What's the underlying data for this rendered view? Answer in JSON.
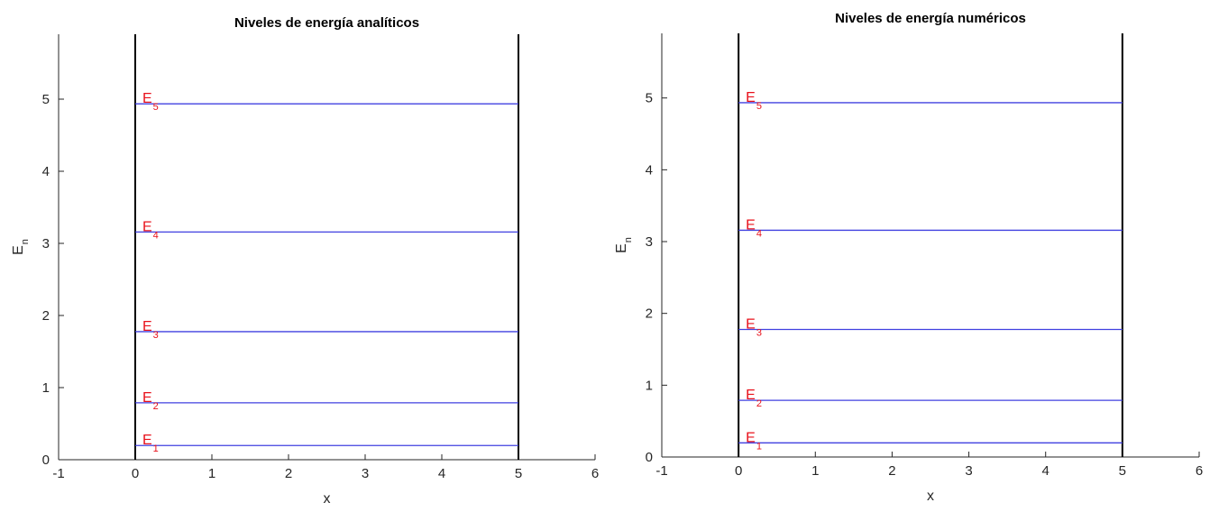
{
  "chart_data": [
    {
      "type": "line",
      "title": "Niveles de energía analíticos",
      "xlabel": "x",
      "ylabel_main": "E",
      "ylabel_sub": "n",
      "xlim": [
        -1,
        6
      ],
      "ylim": [
        0,
        5.9
      ],
      "xticks": [
        -1,
        0,
        1,
        2,
        3,
        4,
        5,
        6
      ],
      "yticks": [
        0,
        1,
        2,
        3,
        4,
        5
      ],
      "well": {
        "x_left": 0,
        "x_right": 5
      },
      "series": [
        {
          "name": "E1",
          "label_main": "E",
          "label_sub": "1",
          "x": [
            0,
            5
          ],
          "values": [
            0.197,
            0.197
          ]
        },
        {
          "name": "E2",
          "label_main": "E",
          "label_sub": "2",
          "x": [
            0,
            5
          ],
          "values": [
            0.789,
            0.789
          ]
        },
        {
          "name": "E3",
          "label_main": "E",
          "label_sub": "3",
          "x": [
            0,
            5
          ],
          "values": [
            1.776,
            1.776
          ]
        },
        {
          "name": "E4",
          "label_main": "E",
          "label_sub": "4",
          "x": [
            0,
            5
          ],
          "values": [
            3.158,
            3.158
          ]
        },
        {
          "name": "E5",
          "label_main": "E",
          "label_sub": "5",
          "x": [
            0,
            5
          ],
          "values": [
            4.935,
            4.935
          ]
        }
      ]
    },
    {
      "type": "line",
      "title": "Niveles de energía numéricos",
      "xlabel": "x",
      "ylabel_main": "E",
      "ylabel_sub": "n",
      "xlim": [
        -1,
        6
      ],
      "ylim": [
        0,
        5.9
      ],
      "xticks": [
        -1,
        0,
        1,
        2,
        3,
        4,
        5,
        6
      ],
      "yticks": [
        0,
        1,
        2,
        3,
        4,
        5
      ],
      "well": {
        "x_left": 0,
        "x_right": 5
      },
      "series": [
        {
          "name": "E1",
          "label_main": "E",
          "label_sub": "1",
          "x": [
            0,
            5
          ],
          "values": [
            0.197,
            0.197
          ]
        },
        {
          "name": "E2",
          "label_main": "E",
          "label_sub": "2",
          "x": [
            0,
            5
          ],
          "values": [
            0.789,
            0.789
          ]
        },
        {
          "name": "E3",
          "label_main": "E",
          "label_sub": "3",
          "x": [
            0,
            5
          ],
          "values": [
            1.776,
            1.776
          ]
        },
        {
          "name": "E4",
          "label_main": "E",
          "label_sub": "4",
          "x": [
            0,
            5
          ],
          "values": [
            3.158,
            3.158
          ]
        },
        {
          "name": "E5",
          "label_main": "E",
          "label_sub": "5",
          "x": [
            0,
            5
          ],
          "values": [
            4.934,
            4.934
          ]
        }
      ]
    }
  ],
  "colors": {
    "level_line": "#4040e0",
    "level_label": "#e8101a",
    "axis": "#262626",
    "wall": "#000000"
  }
}
